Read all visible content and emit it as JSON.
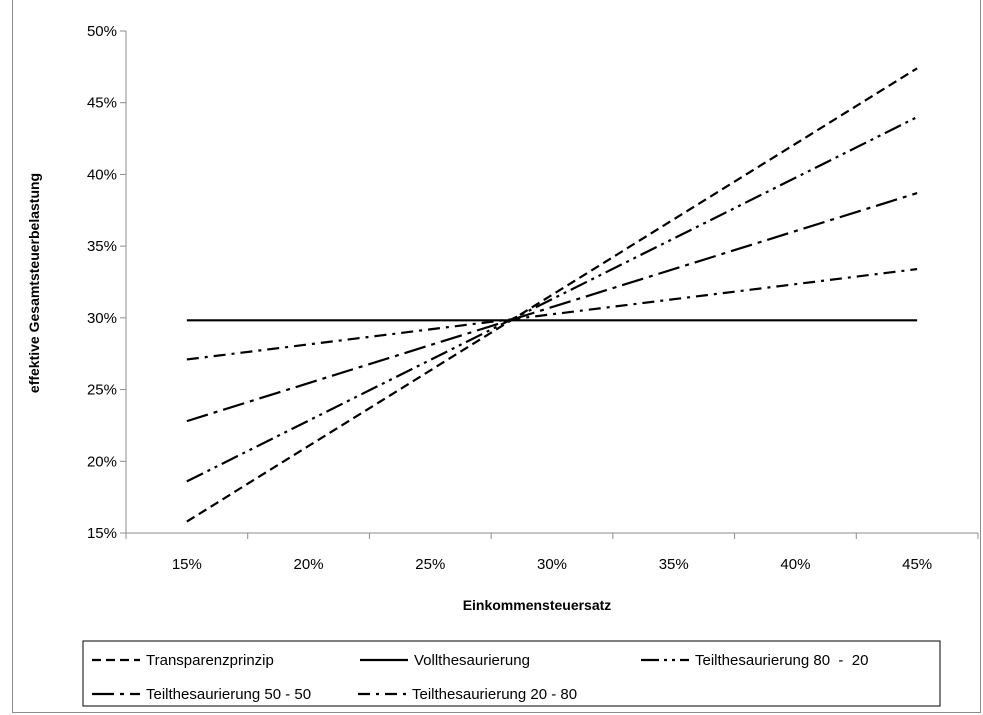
{
  "chart_data": {
    "type": "line",
    "title": "",
    "xlabel": "Einkommensteuersatz",
    "ylabel": "effektive Gesamtsteuerbelastung",
    "x": [
      0.15,
      0.45
    ],
    "xticks": [
      "15%",
      "20%",
      "25%",
      "30%",
      "35%",
      "40%",
      "45%"
    ],
    "yticks": [
      "15%",
      "20%",
      "25%",
      "30%",
      "35%",
      "40%",
      "45%",
      "50%"
    ],
    "xlim": [
      0.125,
      0.475
    ],
    "ylim": [
      0.15,
      0.5
    ],
    "grid": false,
    "legend_position": "bottom",
    "series": [
      {
        "name": "Transparenzprinzip",
        "dash": "dashed",
        "values": [
          0.158,
          0.474
        ]
      },
      {
        "name": "Vollthesaurierung",
        "dash": "solid",
        "values": [
          0.2983,
          0.2983
        ]
      },
      {
        "name": "Teilthesaurierung 80  -  20",
        "dash": "dash-dot-dot",
        "values": [
          0.186,
          0.44
        ]
      },
      {
        "name": "Teilthesaurierung 50 - 50",
        "dash": "long-dash-dot",
        "values": [
          0.228,
          0.387
        ]
      },
      {
        "name": "Teilthesaurierung 20 - 80",
        "dash": "dash-dot",
        "values": [
          0.271,
          0.334
        ]
      }
    ]
  }
}
